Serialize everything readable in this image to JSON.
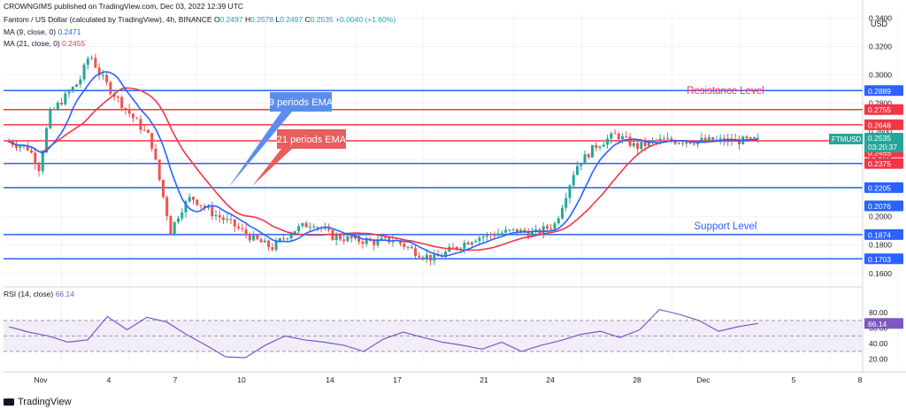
{
  "header": {
    "publisher": "CROWNGIMS published on TradingView.com, Dec 03, 2022 12:39 UTC",
    "symbol": "Fantom / US Dollar (calculated by TradingView), 4h, BINANCE",
    "ohlc": {
      "O": "0.2497",
      "H": "0.2578",
      "L": "0.2497",
      "C": "0.2535",
      "chg": "+0.0040 (+1.60%)"
    },
    "ma9": {
      "label": "MA (9, close, 0)",
      "value": "0.2471"
    },
    "ma21": {
      "label": "MA (21, close, 0)",
      "value": "0.2455"
    },
    "rsi": {
      "label": "RSI (14, close)",
      "value": "66.14"
    }
  },
  "footer": {
    "brand": "TradingView"
  },
  "colors": {
    "up": "#26a69a",
    "down": "#ef5350",
    "ma9": "#2962ff",
    "ma21": "#f23645",
    "support": "#2962ff",
    "resistance": "#f23645",
    "rsi": "#7e57c2"
  },
  "chart_data": {
    "type": "candlestick",
    "currency": "USD",
    "price_axis": {
      "ticks": [
        "0.3400",
        "0.3200",
        "0.3000",
        "0.2800",
        "0.2600",
        "0.2400",
        "0.2200",
        "0.2000",
        "0.1800",
        "0.1600"
      ],
      "range": [
        0.153,
        0.344
      ]
    },
    "x_axis": {
      "labels": [
        "Nov",
        "4",
        "7",
        "10",
        "14",
        "17",
        "21",
        "24",
        "28",
        "Dec",
        "5",
        "8"
      ]
    },
    "symbol_tag": {
      "name": "FTMUSD",
      "price": "0.2535",
      "countdown": "03:20:37"
    },
    "horizontal_levels": [
      {
        "value": 0.2889,
        "label": "0.2889",
        "type": "support"
      },
      {
        "value": 0.2755,
        "label": "0.2755",
        "type": "resistance"
      },
      {
        "value": 0.2648,
        "label": "0.2648",
        "type": "resistance"
      },
      {
        "value": 0.2535,
        "label": "0.2535",
        "type": "resistance"
      },
      {
        "value": 0.2375,
        "label": "0.2375",
        "type": "support"
      },
      {
        "value": 0.2205,
        "label": "0.2205",
        "type": "support"
      },
      {
        "value": 0.1874,
        "label": "0.1874",
        "type": "support"
      },
      {
        "value": 0.1703,
        "label": "0.1703",
        "type": "support"
      }
    ],
    "price_tags": [
      {
        "value": 0.2535,
        "label": "0.2535",
        "color": "#f23645"
      },
      {
        "value": 0.2471,
        "label": "0.2471",
        "color": "#2962ff"
      },
      {
        "value": 0.2455,
        "label": "0.2455",
        "color": "#f23645"
      },
      {
        "value": 0.2375,
        "label": "0.2375",
        "color": "#f23645"
      },
      {
        "value": 0.2076,
        "label": "0.2076",
        "color": "#2962ff"
      }
    ],
    "annotations": [
      {
        "text": "9 periods EMA",
        "color": "#2962ff"
      },
      {
        "text": "21 periods EMA",
        "color": "#f23645"
      },
      {
        "text": "Resistance Level",
        "color": "#f23645"
      },
      {
        "text": "Support Level",
        "color": "#2962ff"
      }
    ],
    "price_path": [
      [
        "Nov 1",
        0.253
      ],
      [
        "Nov 2",
        0.248
      ],
      [
        "Nov 2.5",
        0.234
      ],
      [
        "Nov 3",
        0.272
      ],
      [
        "Nov 4",
        0.288
      ],
      [
        "Nov 4.5",
        0.296
      ],
      [
        "Nov 5",
        0.315
      ],
      [
        "Nov 5.5",
        0.3
      ],
      [
        "Nov 6",
        0.29
      ],
      [
        "Nov 7",
        0.272
      ],
      [
        "Nov 8",
        0.255
      ],
      [
        "Nov 8.5",
        0.222
      ],
      [
        "Nov 9",
        0.19
      ],
      [
        "Nov 9.5",
        0.205
      ],
      [
        "Nov 10",
        0.214
      ],
      [
        "Nov 11",
        0.203
      ],
      [
        "Nov 12",
        0.195
      ],
      [
        "Nov 13",
        0.185
      ],
      [
        "Nov 14",
        0.178
      ],
      [
        "Nov 15",
        0.19
      ],
      [
        "Nov 16",
        0.196
      ],
      [
        "Nov 17",
        0.186
      ],
      [
        "Nov 18",
        0.184
      ],
      [
        "Nov 19",
        0.182
      ],
      [
        "Nov 20",
        0.184
      ],
      [
        "Nov 21",
        0.176
      ],
      [
        "Nov 22",
        0.17
      ],
      [
        "Nov 23",
        0.178
      ],
      [
        "Nov 24",
        0.185
      ],
      [
        "Nov 25",
        0.188
      ],
      [
        "Nov 26",
        0.19
      ],
      [
        "Nov 27",
        0.188
      ],
      [
        "Nov 28",
        0.195
      ],
      [
        "Nov 29",
        0.235
      ],
      [
        "Nov 30",
        0.25
      ],
      [
        "Dec 1",
        0.258
      ],
      [
        "Dec 2",
        0.249
      ],
      [
        "Dec 3",
        0.2535
      ]
    ],
    "rsi_axis": {
      "ticks": [
        "80.00",
        "60.00",
        "40.00",
        "20.00"
      ],
      "range": [
        15,
        95
      ],
      "band": [
        30,
        70
      ]
    },
    "rsi_values": [
      62,
      55,
      50,
      42,
      45,
      75,
      58,
      74,
      68,
      52,
      38,
      23,
      22,
      38,
      50,
      45,
      42,
      38,
      30,
      46,
      55,
      48,
      42,
      38,
      33,
      42,
      30,
      38,
      44,
      52,
      56,
      48,
      58,
      84,
      78,
      70,
      56,
      62,
      66.14
    ]
  }
}
